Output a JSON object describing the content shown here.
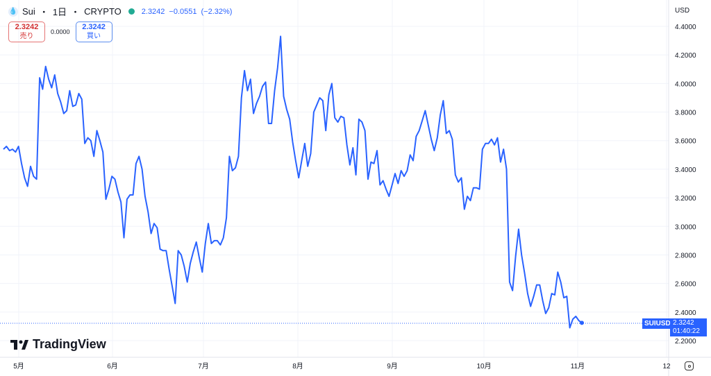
{
  "header": {
    "symbol": "Sui",
    "interval": "1日",
    "exchange": "CRYPTO",
    "separator": "・",
    "last": "2.3242",
    "change": "−0.0551",
    "change_pct": "(−2.32%)"
  },
  "trade": {
    "sell_price": "2.3242",
    "sell_label": "売り",
    "spread": "0.0000",
    "buy_price": "2.3242",
    "buy_label": "買い"
  },
  "currency": "USD",
  "logo": "TradingView",
  "last_price": {
    "symbol": "SUIUSD",
    "price": "2.3242",
    "countdown": "01:40:22",
    "value": 2.3242
  },
  "colors": {
    "line": "#2962ff",
    "grid": "#f0f3fa",
    "up": "#22ab94",
    "sell": "#d32f2f"
  },
  "chart_data": {
    "type": "line",
    "title": "Sui · 1日 · CRYPTO",
    "x_ticks": [
      "5月",
      "6月",
      "7月",
      "8月",
      "9月",
      "10月",
      "11月",
      "12"
    ],
    "y_ticks": [
      "4.4000",
      "4.2000",
      "4.0000",
      "3.8000",
      "3.6000",
      "3.4000",
      "3.2000",
      "3.0000",
      "2.8000",
      "2.6000",
      "2.4000",
      "2.2000"
    ],
    "ylim": [
      2.2,
      4.4
    ],
    "series": [
      {
        "name": "SUIUSD",
        "values": [
          3.54,
          3.56,
          3.53,
          3.54,
          3.52,
          3.56,
          3.44,
          3.34,
          3.28,
          3.42,
          3.35,
          3.33,
          4.04,
          3.96,
          4.12,
          4.03,
          3.97,
          4.06,
          3.93,
          3.87,
          3.79,
          3.81,
          3.95,
          3.84,
          3.85,
          3.93,
          3.89,
          3.58,
          3.62,
          3.6,
          3.49,
          3.67,
          3.6,
          3.52,
          3.19,
          3.26,
          3.35,
          3.33,
          3.24,
          3.17,
          2.92,
          3.19,
          3.22,
          3.22,
          3.44,
          3.49,
          3.4,
          3.21,
          3.1,
          2.95,
          3.02,
          2.99,
          2.84,
          2.83,
          2.83,
          2.7,
          2.58,
          2.46,
          2.83,
          2.8,
          2.72,
          2.61,
          2.74,
          2.82,
          2.89,
          2.78,
          2.68,
          2.88,
          3.02,
          2.88,
          2.9,
          2.9,
          2.87,
          2.92,
          3.06,
          3.49,
          3.39,
          3.41,
          3.49,
          3.9,
          4.09,
          3.95,
          4.03,
          3.79,
          3.86,
          3.91,
          3.98,
          4.01,
          3.72,
          3.72,
          3.95,
          4.11,
          4.33,
          3.91,
          3.82,
          3.75,
          3.59,
          3.46,
          3.34,
          3.46,
          3.58,
          3.42,
          3.51,
          3.8,
          3.85,
          3.9,
          3.88,
          3.67,
          3.92,
          4.0,
          3.76,
          3.73,
          3.77,
          3.76,
          3.57,
          3.43,
          3.55,
          3.36,
          3.75,
          3.73,
          3.67,
          3.33,
          3.45,
          3.44,
          3.53,
          3.29,
          3.32,
          3.26,
          3.21,
          3.29,
          3.37,
          3.3,
          3.39,
          3.35,
          3.39,
          3.5,
          3.46,
          3.63,
          3.67,
          3.74,
          3.81,
          3.71,
          3.61,
          3.53,
          3.62,
          3.78,
          3.88,
          3.65,
          3.67,
          3.61,
          3.36,
          3.31,
          3.34,
          3.12,
          3.21,
          3.18,
          3.27,
          3.27,
          3.26,
          3.54,
          3.58,
          3.58,
          3.61,
          3.57,
          3.62,
          3.45,
          3.54,
          3.4,
          2.61,
          2.55,
          2.79,
          2.98,
          2.8,
          2.67,
          2.53,
          2.44,
          2.51,
          2.59,
          2.59,
          2.48,
          2.39,
          2.43,
          2.53,
          2.52,
          2.68,
          2.61,
          2.5,
          2.51,
          2.29,
          2.35,
          2.37,
          2.34,
          2.3242
        ]
      }
    ]
  }
}
